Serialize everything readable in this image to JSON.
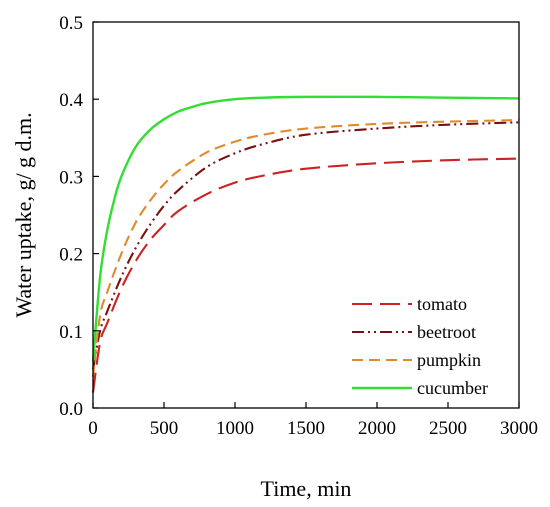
{
  "chart_data": {
    "type": "line",
    "title": "",
    "xlabel": "Time, min",
    "ylabel": "Water uptake, g/ g d.m.",
    "xlim": [
      0,
      3000
    ],
    "ylim": [
      0,
      0.5
    ],
    "x_ticks": [
      0,
      500,
      1000,
      1500,
      2000,
      2500,
      3000
    ],
    "x_tick_labels": [
      "0",
      "500",
      "1000",
      "1500",
      "2000",
      "2500",
      "3000"
    ],
    "y_ticks": [
      0,
      0.1,
      0.2,
      0.3,
      0.4,
      0.5
    ],
    "y_tick_labels": [
      "0.0",
      "0.1",
      "0.2",
      "0.3",
      "0.4",
      "0.5"
    ],
    "grid": false,
    "legend_position": "bottom-right",
    "series": [
      {
        "name": "tomato",
        "color": "#cc2222",
        "style": "long-dash",
        "x": [
          0,
          50,
          100,
          200,
          300,
          400,
          500,
          600,
          800,
          1000,
          1200,
          1500,
          2000,
          2500,
          3000
        ],
        "y": [
          0.02,
          0.085,
          0.11,
          0.155,
          0.19,
          0.217,
          0.237,
          0.255,
          0.277,
          0.292,
          0.301,
          0.31,
          0.317,
          0.321,
          0.323
        ]
      },
      {
        "name": "beetroot",
        "color": "#7a1010",
        "style": "dash-dot-dot",
        "x": [
          0,
          50,
          100,
          200,
          300,
          400,
          500,
          600,
          800,
          1000,
          1200,
          1500,
          2000,
          2500,
          3000
        ],
        "y": [
          0.05,
          0.1,
          0.125,
          0.17,
          0.207,
          0.237,
          0.262,
          0.282,
          0.312,
          0.33,
          0.342,
          0.354,
          0.362,
          0.367,
          0.37
        ]
      },
      {
        "name": "pumpkin",
        "color": "#e08a2e",
        "style": "dash",
        "x": [
          0,
          50,
          100,
          200,
          300,
          400,
          500,
          600,
          800,
          1000,
          1200,
          1500,
          2000,
          2500,
          3000
        ],
        "y": [
          0.04,
          0.12,
          0.15,
          0.2,
          0.24,
          0.268,
          0.29,
          0.307,
          0.331,
          0.345,
          0.354,
          0.362,
          0.368,
          0.371,
          0.373
        ]
      },
      {
        "name": "cucumber",
        "color": "#33dd33",
        "style": "solid",
        "x": [
          0,
          50,
          100,
          150,
          200,
          300,
          400,
          500,
          600,
          700,
          800,
          1000,
          1200,
          1500,
          2000,
          2500,
          3000
        ],
        "y": [
          0.06,
          0.17,
          0.23,
          0.27,
          0.3,
          0.338,
          0.36,
          0.374,
          0.384,
          0.39,
          0.395,
          0.4,
          0.402,
          0.403,
          0.403,
          0.402,
          0.401
        ]
      }
    ]
  }
}
